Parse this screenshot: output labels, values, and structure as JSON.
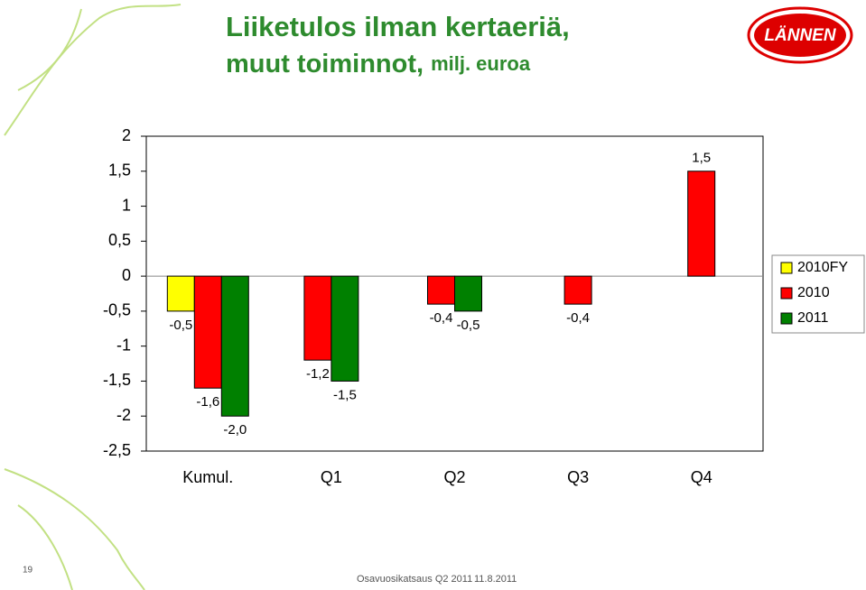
{
  "page": {
    "title_line1": "Liiketulos ilman kertaeriä,",
    "title_line2": "muut toiminnot,",
    "title_unit": "milj. euroa",
    "logo": "LÄNNEN",
    "slide_number": "19",
    "footer_title": "Osavuosikatsaus Q2 2011",
    "footer_date": "11.8.2011"
  },
  "chart_data": {
    "type": "bar",
    "categories": [
      "Kumul.",
      "Q1",
      "Q2",
      "Q3",
      "Q4"
    ],
    "series": [
      {
        "name": "2010FY",
        "color": "#ffff00",
        "values": [
          -0.5,
          null,
          null,
          null,
          null
        ],
        "value_labels": [
          "-0,5",
          null,
          null,
          null,
          null
        ]
      },
      {
        "name": "2010",
        "color": "#ff0000",
        "values": [
          -1.6,
          -1.2,
          -0.4,
          -0.4,
          1.5
        ],
        "value_labels": [
          "-1,6",
          "-1,2",
          "-0,4",
          "-0,4",
          "1,5"
        ]
      },
      {
        "name": "2011",
        "color": "#008000",
        "values": [
          -2.0,
          -1.5,
          -0.5,
          null,
          null
        ],
        "value_labels": [
          "-2,0",
          "-1,5",
          "-0,5",
          null,
          null
        ]
      }
    ],
    "ylim": [
      -2.5,
      2
    ],
    "yticks": [
      2,
      {
        "value": 1.5,
        "label": "1,5"
      },
      1,
      {
        "value": 0.5,
        "label": "0,5"
      },
      0,
      {
        "value": -0.5,
        "label": "-0,5"
      },
      -1,
      {
        "value": -1.5,
        "label": "-1,5"
      },
      -2,
      {
        "value": -2.5,
        "label": "-2,5"
      }
    ],
    "grid": false,
    "legend": "right"
  }
}
